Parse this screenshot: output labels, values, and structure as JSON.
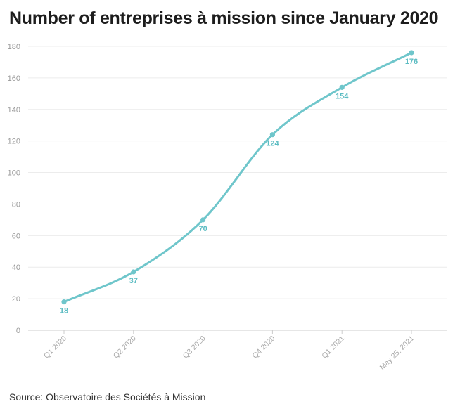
{
  "chart_data": {
    "type": "line",
    "title": "Number of entreprises à mission since January 2020",
    "xlabel": "",
    "ylabel": "",
    "categories": [
      "Q1 2020",
      "Q2 2020",
      "Q3 2020",
      "Q4 2020",
      "Q1 2021",
      "May 25, 2021"
    ],
    "values": [
      18,
      37,
      70,
      124,
      154,
      176
    ],
    "data_labels": [
      "18",
      "37",
      "70",
      "124",
      "154",
      "176"
    ],
    "ylim": [
      0,
      180
    ],
    "yticks": [
      0,
      20,
      40,
      60,
      80,
      100,
      120,
      140,
      160,
      180
    ],
    "ytick_labels": [
      "0",
      "20",
      "40",
      "60",
      "80",
      "100",
      "120",
      "140",
      "160",
      "180"
    ],
    "grid": "horizontal",
    "legend": "none",
    "colors": {
      "line": "#6fc6cb",
      "label": "#5bbcc2",
      "grid": "#ececec",
      "axis": "#cccccc"
    }
  },
  "source": "Source: Observatoire des Sociétés à Mission"
}
